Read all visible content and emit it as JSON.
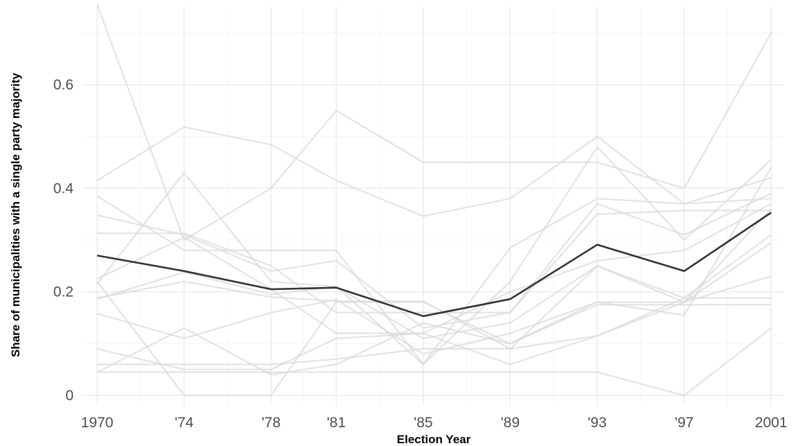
{
  "chart_data": {
    "type": "line",
    "title": "",
    "xlabel": "Election Year",
    "ylabel": "Share of municipalities with a single party majority",
    "x": [
      1970,
      1974,
      1978,
      1981,
      1985,
      1989,
      1993,
      1997,
      2001
    ],
    "x_tick_labels": [
      "1970",
      "'74",
      "'78",
      "'81",
      "'85",
      "'89",
      "'93",
      "'97",
      "2001"
    ],
    "xlim": [
      1969.3,
      2001.6
    ],
    "ylim": [
      -0.02,
      0.75
    ],
    "y_ticks": [
      0,
      0.2,
      0.4,
      0.6
    ],
    "y_tick_labels": [
      "0",
      "0.2",
      "0.4",
      "0.6"
    ],
    "grid": true,
    "legend": "none",
    "colors": {
      "background": "#ffffff",
      "grid_major": "#ebebeb",
      "grid_minor": "#f5f5f5",
      "thin_series": "#d9d9d9",
      "average": "#333333"
    },
    "series": [
      {
        "values": [
          0.755,
          0.3,
          0.4,
          0.55,
          0.45,
          0.45,
          0.45,
          0.4,
          0.7
        ]
      },
      {
        "values": [
          0.415,
          0.518,
          0.484,
          0.415,
          0.346,
          0.38,
          0.5,
          0.37,
          0.42
        ]
      },
      {
        "values": [
          0.215,
          0.43,
          0.22,
          0.21,
          0.06,
          0.22,
          0.48,
          0.3,
          0.455
        ]
      },
      {
        "values": [
          0.385,
          0.28,
          0.28,
          0.28,
          0.06,
          0.285,
          0.38,
          0.37,
          0.38
        ]
      },
      {
        "values": [
          0.348,
          0.31,
          0.24,
          0.26,
          0.13,
          0.16,
          0.37,
          0.31,
          0.39
        ]
      },
      {
        "values": [
          0.313,
          0.313,
          0.25,
          0.16,
          0.16,
          0.16,
          0.35,
          0.357,
          0.357
        ]
      },
      {
        "values": [
          0.225,
          0.305,
          0.205,
          0.12,
          0.12,
          0.2,
          0.26,
          0.28,
          0.37
        ]
      },
      {
        "values": [
          0.188,
          0.22,
          0.19,
          0.182,
          0.182,
          0.09,
          0.25,
          0.188,
          0.31
        ]
      },
      {
        "values": [
          0.186,
          0.238,
          0.195,
          0.21,
          0.11,
          0.14,
          0.25,
          0.18,
          0.295
        ]
      },
      {
        "values": [
          0.158,
          0.11,
          0.16,
          0.185,
          0.08,
          0.12,
          0.18,
          0.18,
          0.23
        ]
      },
      {
        "values": [
          0.09,
          0.05,
          0.05,
          0.11,
          0.12,
          0.06,
          0.115,
          0.188,
          0.188
        ]
      },
      {
        "values": [
          0.045,
          0.13,
          0.04,
          0.06,
          0.14,
          0.1,
          0.18,
          0.155,
          0.44
        ]
      },
      {
        "values": [
          0.06,
          0.06,
          0.06,
          0.07,
          0.09,
          0.09,
          0.115,
          0.18,
          0.36
        ]
      },
      {
        "values": [
          0.045,
          0.045,
          0.045,
          0.045,
          0.045,
          0.045,
          0.045,
          0.0,
          0.13
        ]
      },
      {
        "values": [
          0.22,
          0.0,
          0.0,
          0.18,
          0.18,
          0.1,
          0.175,
          0.175,
          0.175
        ]
      }
    ],
    "average_series": {
      "values": [
        0.27,
        0.24,
        0.205,
        0.208,
        0.153,
        0.186,
        0.291,
        0.24,
        0.353
      ]
    }
  }
}
